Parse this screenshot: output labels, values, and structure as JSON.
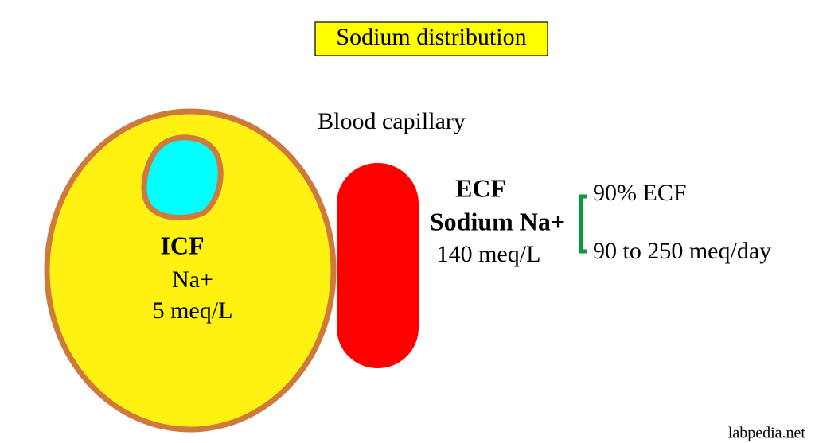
{
  "title": "Sodium distribution",
  "capillary_label": "Blood capillary",
  "icf": {
    "label": "ICF",
    "ion": "Na+",
    "concentration": "5 meq/L"
  },
  "ecf": {
    "label": "ECF",
    "ion": "Sodium Na+",
    "concentration": "140 meq/L"
  },
  "bracket": {
    "items": [
      "90% ECF",
      "90 to 250 meq/day"
    ]
  },
  "watermark": "labpedia.net"
}
